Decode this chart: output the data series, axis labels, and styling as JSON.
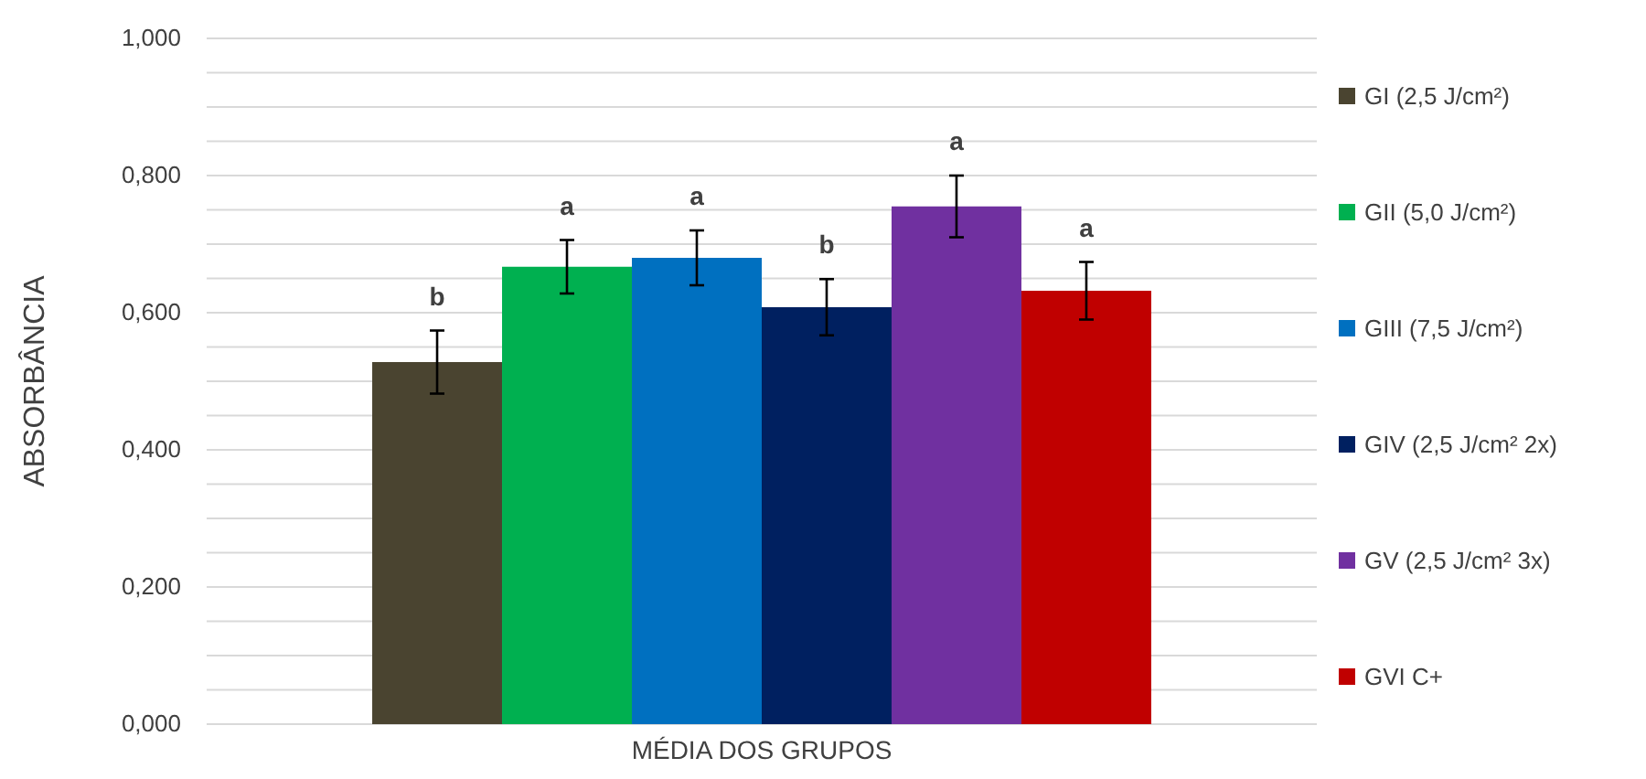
{
  "chart_data": {
    "type": "bar",
    "xlabel": "MÉDIA DOS GRUPOS",
    "ylabel": "ABSORBÂNCIA",
    "categories": [
      null
    ],
    "series": [
      {
        "name": "GI (2,5 J/cm²)",
        "color": "#4a4430",
        "values": [
          0.528
        ],
        "errors": [
          0.046
        ],
        "value_labels": [
          "b"
        ]
      },
      {
        "name": "GII (5,0 J/cm²)",
        "color": "#00b050",
        "values": [
          0.667
        ],
        "errors": [
          0.039
        ],
        "value_labels": [
          "a"
        ]
      },
      {
        "name": "GIII (7,5 J/cm²)",
        "color": "#0070c0",
        "values": [
          0.68
        ],
        "errors": [
          0.04
        ],
        "value_labels": [
          "a"
        ]
      },
      {
        "name": "GIV (2,5 J/cm² 2x)",
        "color": "#002060",
        "values": [
          0.608
        ],
        "errors": [
          0.041
        ],
        "value_labels": [
          "b"
        ]
      },
      {
        "name": "GV (2,5 J/cm² 3x)",
        "color": "#7030a0",
        "values": [
          0.755
        ],
        "errors": [
          0.045
        ],
        "value_labels": [
          "a"
        ]
      },
      {
        "name": "GVI C+",
        "color": "#c00000",
        "values": [
          0.632
        ],
        "errors": [
          0.042
        ],
        "value_labels": [
          "a"
        ]
      }
    ],
    "ylim": [
      0,
      1
    ],
    "yticks": [
      {
        "value": 0,
        "label": "0,000"
      },
      {
        "value": 0.05,
        "label": null
      },
      {
        "value": 0.1,
        "label": null
      },
      {
        "value": 0.15,
        "label": null
      },
      {
        "value": 0.2,
        "label": "0,200"
      },
      {
        "value": 0.25,
        "label": null
      },
      {
        "value": 0.3,
        "label": null
      },
      {
        "value": 0.35,
        "label": null
      },
      {
        "value": 0.4,
        "label": "0,400"
      },
      {
        "value": 0.45,
        "label": null
      },
      {
        "value": 0.5,
        "label": null
      },
      {
        "value": 0.55,
        "label": null
      },
      {
        "value": 0.6,
        "label": "0,600"
      },
      {
        "value": 0.65,
        "label": null
      },
      {
        "value": 0.7,
        "label": null
      },
      {
        "value": 0.75,
        "label": null
      },
      {
        "value": 0.8,
        "label": "0,800"
      },
      {
        "value": 0.85,
        "label": null
      },
      {
        "value": 0.9,
        "label": null
      },
      {
        "value": 0.95,
        "label": null
      },
      {
        "value": 1,
        "label": "1,000"
      }
    ],
    "grid": "y",
    "legend": "right"
  }
}
